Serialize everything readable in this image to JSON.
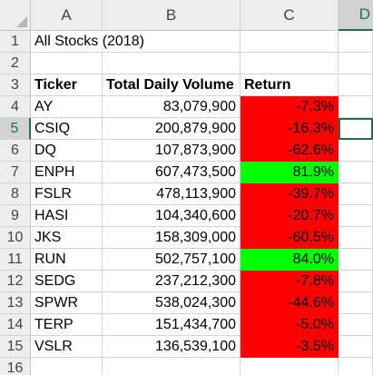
{
  "columns": [
    "A",
    "B",
    "C",
    "D"
  ],
  "title": "All Stocks (2018)",
  "headers": {
    "ticker": "Ticker",
    "volume": "Total Daily Volume",
    "return": "Return"
  },
  "colors": {
    "negative": "#ff0000",
    "positive": "#00ff00",
    "selection": "#217346"
  },
  "rows_numbers": [
    "1",
    "2",
    "3",
    "4",
    "5",
    "6",
    "7",
    "8",
    "9",
    "10",
    "11",
    "12",
    "13",
    "14",
    "15",
    "16"
  ],
  "data": [
    {
      "ticker": "AY",
      "volume": "83,079,900",
      "return": "-7.3%",
      "status": "negative"
    },
    {
      "ticker": "CSIQ",
      "volume": "200,879,900",
      "return": "-16.3%",
      "status": "negative"
    },
    {
      "ticker": "DQ",
      "volume": "107,873,900",
      "return": "-62.6%",
      "status": "negative"
    },
    {
      "ticker": "ENPH",
      "volume": "607,473,500",
      "return": "81.9%",
      "status": "positive"
    },
    {
      "ticker": "FSLR",
      "volume": "478,113,900",
      "return": "-39.7%",
      "status": "negative"
    },
    {
      "ticker": "HASI",
      "volume": "104,340,600",
      "return": "-20.7%",
      "status": "negative"
    },
    {
      "ticker": "JKS",
      "volume": "158,309,000",
      "return": "-60.5%",
      "status": "negative"
    },
    {
      "ticker": "RUN",
      "volume": "502,757,100",
      "return": "84.0%",
      "status": "positive"
    },
    {
      "ticker": "SEDG",
      "volume": "237,212,300",
      "return": "-7.8%",
      "status": "negative"
    },
    {
      "ticker": "SPWR",
      "volume": "538,024,300",
      "return": "-44.6%",
      "status": "negative"
    },
    {
      "ticker": "TERP",
      "volume": "151,434,700",
      "return": "-5.0%",
      "status": "negative"
    },
    {
      "ticker": "VSLR",
      "volume": "136,539,100",
      "return": "-3.5%",
      "status": "negative"
    }
  ]
}
